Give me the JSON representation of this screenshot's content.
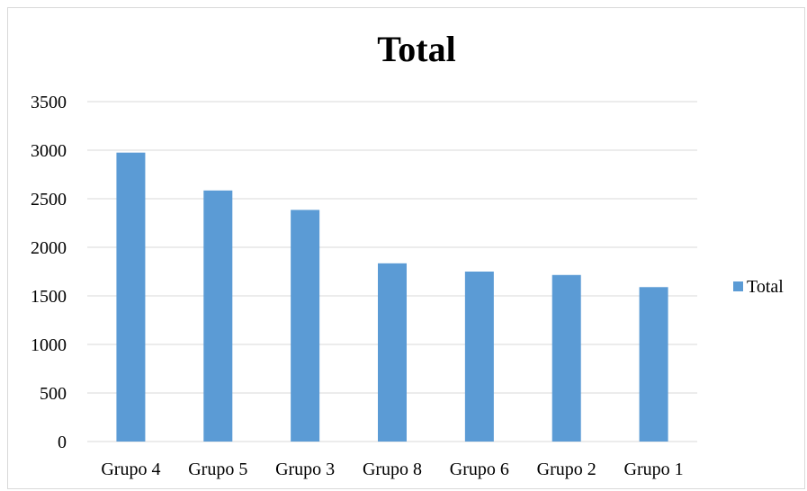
{
  "chart_data": {
    "type": "bar",
    "title": "Total",
    "categories": [
      "Grupo 4",
      "Grupo 5",
      "Grupo 3",
      "Grupo 8",
      "Grupo 6",
      "Grupo 2",
      "Grupo 1"
    ],
    "series": [
      {
        "name": "Total",
        "values": [
          2975,
          2585,
          2385,
          1835,
          1750,
          1715,
          1590
        ],
        "color": "#5b9bd5"
      }
    ],
    "ylim": [
      0,
      3500
    ],
    "yticks": [
      0,
      500,
      1000,
      1500,
      2000,
      2500,
      3000,
      3500
    ],
    "grid": true,
    "legend_position": "right"
  }
}
